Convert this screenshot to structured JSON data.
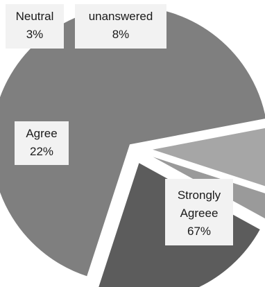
{
  "chart_data": {
    "type": "pie",
    "title": "",
    "start_angle_deg": 10.8,
    "exploded": true,
    "slices": [
      {
        "label": "Strongly Agreee",
        "value": 67,
        "value_label": "67%",
        "color": "#7f7f7f"
      },
      {
        "label": "Agree",
        "value": 22,
        "value_label": "22%",
        "color": "#5c5c5c"
      },
      {
        "label": "Neutral",
        "value": 3,
        "value_label": "3%",
        "color": "#9a9a9a"
      },
      {
        "label": "unanswered",
        "value": 8,
        "value_label": "8%",
        "color": "#a6a6a6"
      }
    ]
  }
}
